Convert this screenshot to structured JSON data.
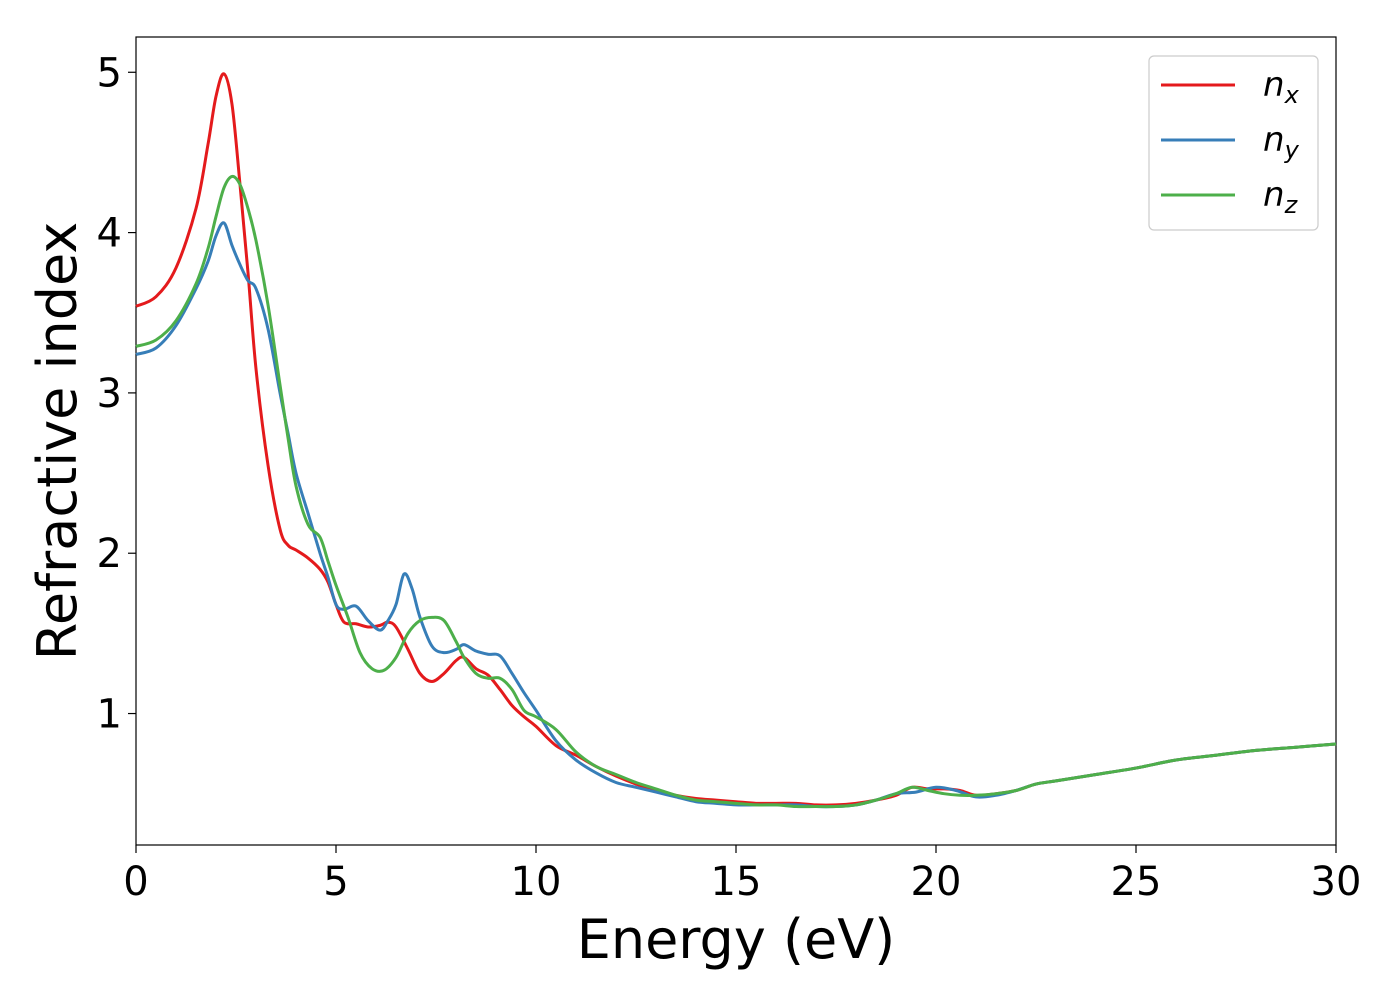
{
  "chart_data": {
    "type": "line",
    "title": "",
    "xlabel": "Energy (eV)",
    "ylabel": "Refractive index",
    "xlim": [
      0,
      30
    ],
    "ylim": [
      0.18,
      5.22
    ],
    "xticks": [
      0,
      5,
      10,
      15,
      20,
      25,
      30
    ],
    "yticks": [
      1,
      2,
      3,
      4,
      5
    ],
    "grid": false,
    "legend": {
      "position": "top-right"
    },
    "series": [
      {
        "name": "n",
        "subscript": "x",
        "color": "#e41a1c",
        "x": [
          0,
          0.5,
          1.0,
          1.5,
          1.8,
          2.0,
          2.2,
          2.4,
          2.6,
          2.8,
          3.0,
          3.3,
          3.6,
          3.8,
          4.0,
          4.3,
          4.6,
          4.8,
          5.0,
          5.2,
          5.5,
          5.8,
          6.1,
          6.3,
          6.5,
          6.8,
          7.1,
          7.4,
          7.7,
          8.0,
          8.2,
          8.5,
          8.8,
          9.1,
          9.4,
          9.7,
          10.0,
          10.5,
          11.0,
          11.5,
          12.0,
          12.5,
          13.0,
          13.5,
          14.0,
          14.5,
          15.0,
          15.5,
          16.0,
          16.5,
          17.0,
          17.5,
          18.0,
          18.5,
          19.0,
          19.4,
          19.8,
          20.2,
          20.6,
          21.0,
          21.5,
          22.0,
          22.5,
          23.0,
          24.0,
          25.0,
          26.0,
          27.0,
          28.0,
          29.0,
          30.0
        ],
        "y": [
          3.54,
          3.6,
          3.78,
          4.15,
          4.55,
          4.85,
          4.99,
          4.8,
          4.3,
          3.75,
          3.15,
          2.55,
          2.15,
          2.05,
          2.02,
          1.97,
          1.9,
          1.82,
          1.68,
          1.57,
          1.56,
          1.54,
          1.55,
          1.57,
          1.54,
          1.4,
          1.25,
          1.2,
          1.25,
          1.33,
          1.35,
          1.28,
          1.24,
          1.15,
          1.05,
          0.98,
          0.92,
          0.8,
          0.74,
          0.67,
          0.61,
          0.56,
          0.52,
          0.49,
          0.47,
          0.46,
          0.45,
          0.44,
          0.44,
          0.44,
          0.43,
          0.43,
          0.44,
          0.46,
          0.49,
          0.54,
          0.53,
          0.53,
          0.52,
          0.49,
          0.5,
          0.52,
          0.56,
          0.58,
          0.62,
          0.66,
          0.71,
          0.74,
          0.77,
          0.79,
          0.81
        ]
      },
      {
        "name": "n",
        "subscript": "y",
        "color": "#377eb8",
        "x": [
          0,
          0.5,
          1.0,
          1.5,
          1.8,
          2.0,
          2.2,
          2.4,
          2.6,
          2.8,
          3.0,
          3.3,
          3.6,
          3.8,
          4.0,
          4.3,
          4.6,
          4.8,
          5.0,
          5.2,
          5.5,
          5.8,
          6.1,
          6.3,
          6.5,
          6.7,
          6.9,
          7.1,
          7.4,
          7.7,
          8.0,
          8.2,
          8.5,
          8.8,
          9.1,
          9.4,
          9.7,
          10.0,
          10.5,
          11.0,
          11.5,
          12.0,
          12.5,
          13.0,
          13.5,
          14.0,
          14.5,
          15.0,
          15.5,
          16.0,
          16.5,
          17.0,
          17.5,
          18.0,
          18.5,
          19.0,
          19.5,
          20.0,
          20.5,
          21.0,
          21.5,
          22.0,
          22.5,
          23.0,
          24.0,
          25.0,
          26.0,
          27.0,
          28.0,
          29.0,
          30.0
        ],
        "y": [
          3.24,
          3.28,
          3.42,
          3.65,
          3.82,
          3.98,
          4.06,
          3.92,
          3.8,
          3.7,
          3.65,
          3.4,
          3.0,
          2.75,
          2.5,
          2.25,
          2.0,
          1.85,
          1.68,
          1.65,
          1.67,
          1.58,
          1.52,
          1.58,
          1.68,
          1.87,
          1.78,
          1.6,
          1.42,
          1.38,
          1.4,
          1.43,
          1.39,
          1.37,
          1.36,
          1.25,
          1.13,
          1.02,
          0.83,
          0.71,
          0.63,
          0.57,
          0.54,
          0.51,
          0.48,
          0.45,
          0.44,
          0.43,
          0.43,
          0.43,
          0.43,
          0.42,
          0.42,
          0.43,
          0.46,
          0.5,
          0.51,
          0.54,
          0.52,
          0.48,
          0.49,
          0.52,
          0.56,
          0.58,
          0.62,
          0.66,
          0.71,
          0.74,
          0.77,
          0.79,
          0.81
        ]
      },
      {
        "name": "n",
        "subscript": "z",
        "color": "#4daf4a",
        "x": [
          0,
          0.5,
          1.0,
          1.5,
          1.8,
          2.0,
          2.2,
          2.4,
          2.6,
          2.8,
          3.0,
          3.3,
          3.6,
          3.8,
          4.0,
          4.3,
          4.6,
          4.8,
          5.0,
          5.3,
          5.6,
          5.9,
          6.2,
          6.5,
          6.8,
          7.1,
          7.4,
          7.7,
          8.0,
          8.2,
          8.5,
          8.8,
          9.1,
          9.4,
          9.7,
          10.0,
          10.5,
          11.0,
          11.5,
          12.0,
          12.5,
          13.0,
          13.5,
          14.0,
          14.5,
          15.0,
          15.5,
          16.0,
          16.5,
          17.0,
          17.5,
          18.0,
          18.5,
          19.0,
          19.4,
          19.8,
          20.2,
          20.6,
          21.0,
          21.5,
          22.0,
          22.5,
          23.0,
          24.0,
          25.0,
          26.0,
          27.0,
          28.0,
          29.0,
          30.0
        ],
        "y": [
          3.29,
          3.33,
          3.45,
          3.68,
          3.9,
          4.1,
          4.28,
          4.35,
          4.3,
          4.15,
          3.95,
          3.55,
          3.05,
          2.72,
          2.42,
          2.18,
          2.1,
          1.95,
          1.8,
          1.6,
          1.38,
          1.28,
          1.27,
          1.35,
          1.5,
          1.58,
          1.6,
          1.58,
          1.45,
          1.35,
          1.25,
          1.22,
          1.22,
          1.15,
          1.02,
          0.98,
          0.9,
          0.76,
          0.67,
          0.62,
          0.57,
          0.53,
          0.49,
          0.46,
          0.45,
          0.44,
          0.43,
          0.43,
          0.42,
          0.42,
          0.42,
          0.43,
          0.46,
          0.5,
          0.54,
          0.52,
          0.5,
          0.49,
          0.49,
          0.5,
          0.52,
          0.56,
          0.58,
          0.62,
          0.66,
          0.71,
          0.74,
          0.77,
          0.79,
          0.81
        ]
      }
    ]
  }
}
